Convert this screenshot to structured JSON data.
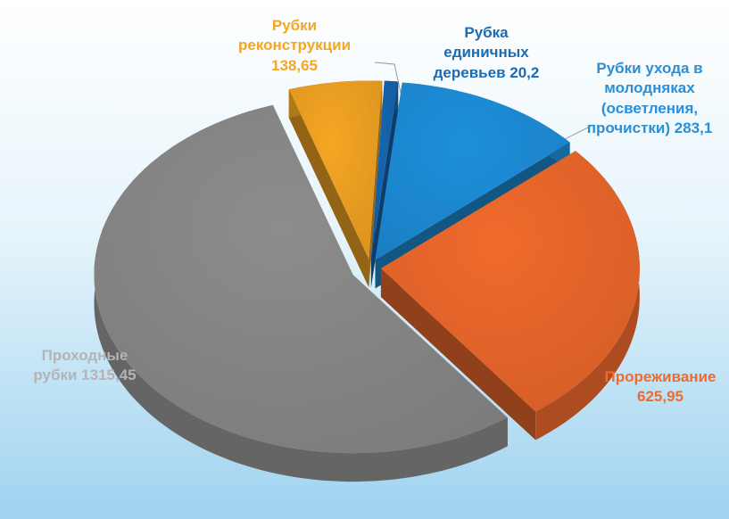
{
  "chart_data": {
    "type": "pie3d",
    "categories": [
      "Рубки реконструкции",
      "Рубка единичных деревьев",
      "Рубки ухода в молодняках (осветления, прочистки)",
      "Прореживание",
      "Проходные рубки"
    ],
    "values": [
      138.65,
      20.2,
      283.1,
      625.95,
      1315.45
    ],
    "value_labels": [
      "138,65",
      "20,2",
      "283,1",
      "625,95",
      "1315,45"
    ],
    "colors": [
      "#f5a623",
      "#1565b0",
      "#1e8fdc",
      "#f06a2c",
      "#8c8c8c"
    ],
    "label_colors": [
      "#f5a623",
      "#1a6cb3",
      "#2a8fd6",
      "#f06a2c",
      "#b4b4b4"
    ]
  }
}
